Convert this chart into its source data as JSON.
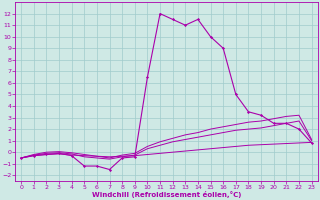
{
  "xlabel": "Windchill (Refroidissement éolien,°C)",
  "background_color": "#cfe9e5",
  "grid_color": "#a0cccc",
  "line_color": "#aa00aa",
  "x_hours": [
    0,
    1,
    2,
    3,
    4,
    5,
    6,
    7,
    8,
    9,
    10,
    11,
    12,
    13,
    14,
    15,
    16,
    17,
    18,
    19,
    20,
    21,
    22,
    23
  ],
  "main_curve": [
    -0.5,
    -0.3,
    -0.2,
    -0.1,
    -0.3,
    -1.2,
    -1.2,
    -1.5,
    -0.5,
    -0.4,
    6.5,
    12.0,
    11.5,
    11.0,
    11.5,
    10.0,
    9.0,
    5.0,
    3.5,
    3.2,
    2.5,
    2.5,
    2.0,
    0.8
  ],
  "trend_flat": [
    -0.5,
    -0.3,
    -0.2,
    -0.15,
    -0.25,
    -0.3,
    -0.35,
    -0.4,
    -0.35,
    -0.3,
    -0.2,
    -0.1,
    0.0,
    0.1,
    0.2,
    0.3,
    0.4,
    0.5,
    0.6,
    0.65,
    0.7,
    0.75,
    0.8,
    0.85
  ],
  "trend_mid1": [
    -0.5,
    -0.25,
    -0.1,
    -0.05,
    -0.15,
    -0.4,
    -0.5,
    -0.6,
    -0.4,
    -0.25,
    0.3,
    0.6,
    0.9,
    1.1,
    1.3,
    1.5,
    1.7,
    1.9,
    2.0,
    2.1,
    2.3,
    2.5,
    2.7,
    1.0
  ],
  "trend_mid2": [
    -0.5,
    -0.2,
    0.0,
    0.05,
    -0.05,
    -0.2,
    -0.35,
    -0.5,
    -0.25,
    -0.1,
    0.5,
    0.9,
    1.2,
    1.5,
    1.7,
    2.0,
    2.2,
    2.4,
    2.6,
    2.7,
    2.9,
    3.1,
    3.2,
    1.1
  ],
  "xlim": [
    -0.5,
    23.5
  ],
  "ylim": [
    -2.5,
    13.0
  ],
  "yticks": [
    -2,
    -1,
    0,
    1,
    2,
    3,
    4,
    5,
    6,
    7,
    8,
    9,
    10,
    11,
    12
  ],
  "xticks": [
    0,
    1,
    2,
    3,
    4,
    5,
    6,
    7,
    8,
    9,
    10,
    11,
    12,
    13,
    14,
    15,
    16,
    17,
    18,
    19,
    20,
    21,
    22,
    23
  ]
}
